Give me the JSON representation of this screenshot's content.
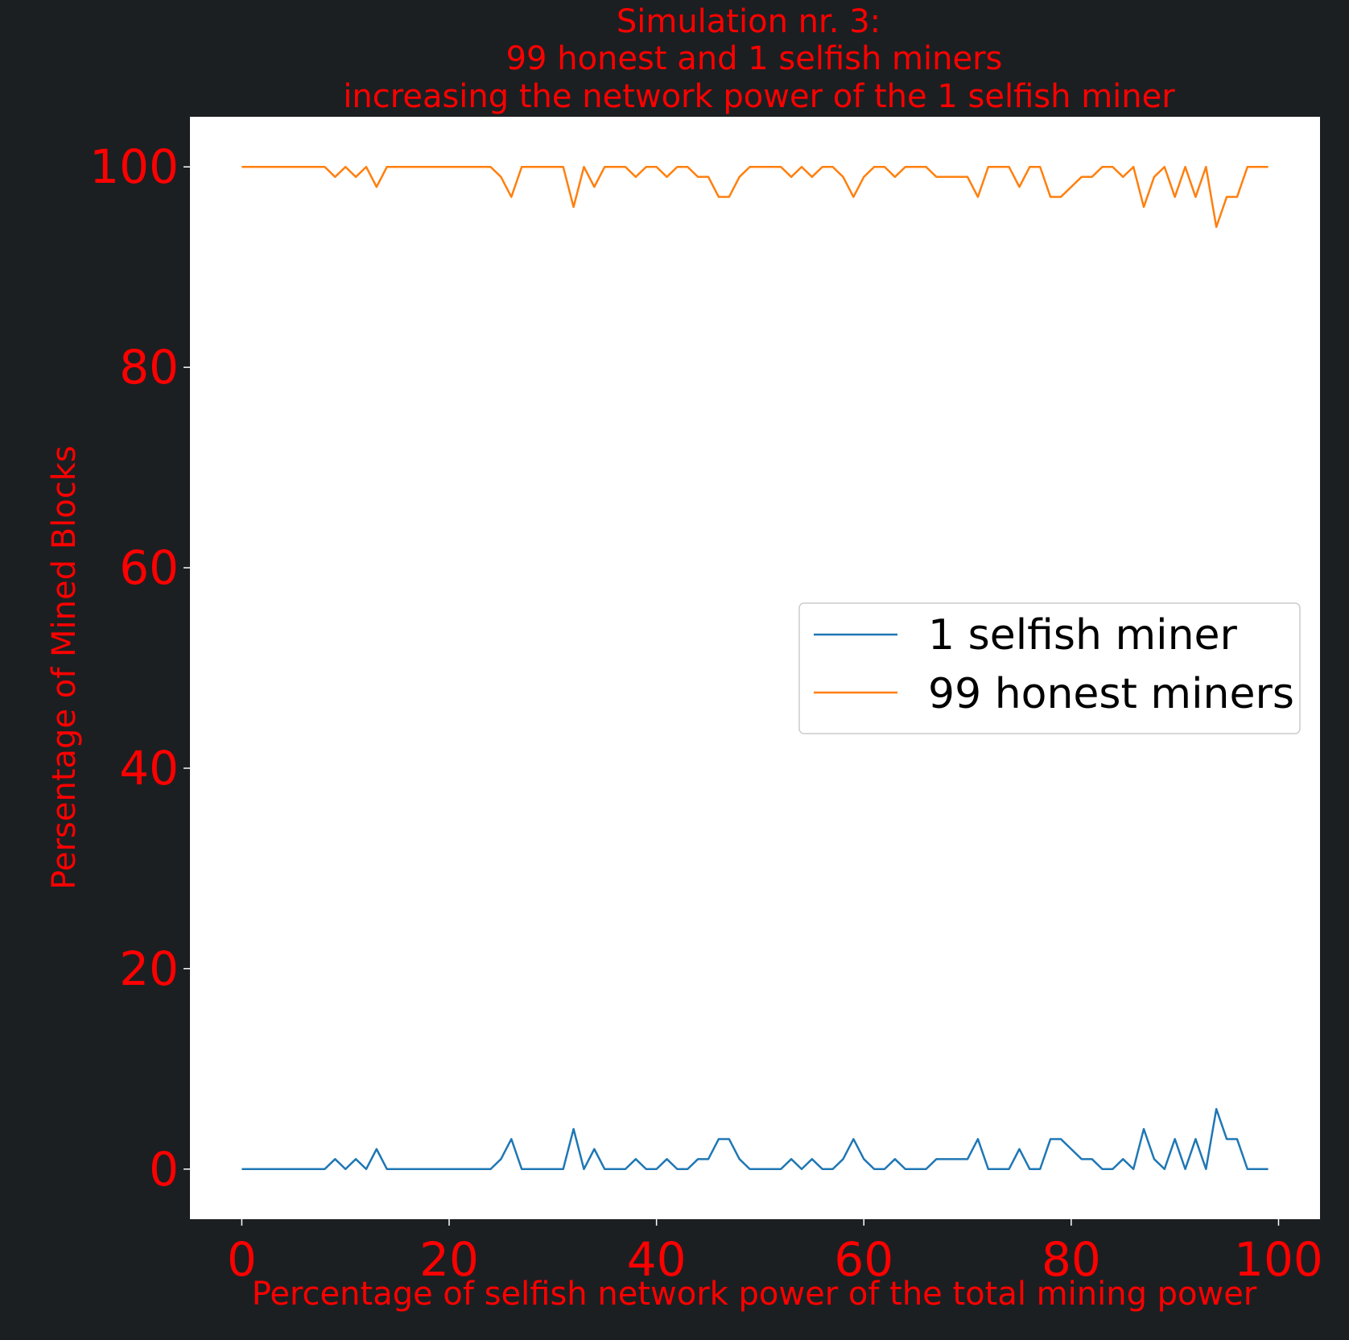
{
  "chart_data": {
    "type": "line",
    "title": [
      "Simulation nr. 3:",
      "99 honest and 1 selfish miners",
      "increasing the network power of the 1 selfish miner"
    ],
    "xlabel": "Percentage of selfish network power of the total mining power",
    "ylabel": "Persentage of Mined Blocks",
    "xlim": [
      -5,
      104
    ],
    "ylim": [
      -5,
      105
    ],
    "xticks": [
      0,
      20,
      40,
      60,
      80,
      100
    ],
    "yticks": [
      0,
      20,
      40,
      60,
      80,
      100
    ],
    "grid": false,
    "legend_position": "center-right",
    "colors": {
      "selfish": "#1f77b4",
      "honest": "#ff7f0e",
      "background": "#1c1f21",
      "text": "#ff0000"
    },
    "series": [
      {
        "name": "1 selfish miner",
        "color": "#1f77b4",
        "values": [
          0,
          0,
          0,
          0,
          0,
          0,
          0,
          0,
          0,
          1,
          0,
          1,
          0,
          2,
          0,
          0,
          0,
          0,
          0,
          0,
          0,
          0,
          0,
          0,
          0,
          1,
          3,
          0,
          0,
          0,
          0,
          0,
          4,
          0,
          2,
          0,
          0,
          0,
          1,
          0,
          0,
          1,
          0,
          0,
          1,
          1,
          3,
          3,
          1,
          0,
          0,
          0,
          0,
          1,
          0,
          1,
          0,
          0,
          1,
          3,
          1,
          0,
          0,
          1,
          0,
          0,
          0,
          1,
          1,
          1,
          1,
          3,
          0,
          0,
          0,
          2,
          0,
          0,
          3,
          3,
          2,
          1,
          1,
          0,
          0,
          1,
          0,
          4,
          1,
          0,
          3,
          0,
          3,
          0,
          6,
          3,
          3,
          0,
          0,
          0
        ]
      },
      {
        "name": "99 honest miners",
        "color": "#ff7f0e",
        "values": [
          100,
          100,
          100,
          100,
          100,
          100,
          100,
          100,
          100,
          99,
          100,
          99,
          100,
          98,
          100,
          100,
          100,
          100,
          100,
          100,
          100,
          100,
          100,
          100,
          100,
          99,
          97,
          100,
          100,
          100,
          100,
          100,
          96,
          100,
          98,
          100,
          100,
          100,
          99,
          100,
          100,
          99,
          100,
          100,
          99,
          99,
          97,
          97,
          99,
          100,
          100,
          100,
          100,
          99,
          100,
          99,
          100,
          100,
          99,
          97,
          99,
          100,
          100,
          99,
          100,
          100,
          100,
          99,
          99,
          99,
          99,
          97,
          100,
          100,
          100,
          98,
          100,
          100,
          97,
          97,
          98,
          99,
          99,
          100,
          100,
          99,
          100,
          96,
          99,
          100,
          97,
          100,
          97,
          100,
          94,
          97,
          97,
          100,
          100,
          100
        ]
      }
    ]
  }
}
